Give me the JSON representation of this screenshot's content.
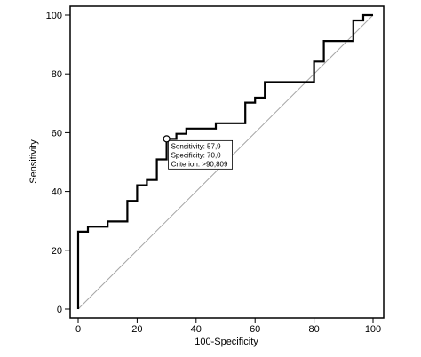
{
  "chart_data": {
    "type": "line",
    "title": "",
    "xlabel": "100-Specificity",
    "ylabel": "Sensitivity",
    "xlim": [
      0,
      100
    ],
    "ylim": [
      0,
      100
    ],
    "x_ticks": [
      "0",
      "20",
      "40",
      "60",
      "80",
      "100"
    ],
    "y_ticks": [
      "0",
      "20",
      "40",
      "60",
      "80",
      "100"
    ],
    "grid": false,
    "legend": "none",
    "series": [
      {
        "type": "step",
        "color": "#000000",
        "points": [
          [
            0,
            0
          ],
          [
            0,
            26.3
          ],
          [
            3.3,
            26.3
          ],
          [
            3.3,
            28
          ],
          [
            10,
            28
          ],
          [
            10,
            29.8
          ],
          [
            16.7,
            29.8
          ],
          [
            16.7,
            36.8
          ],
          [
            20,
            36.8
          ],
          [
            20,
            42.1
          ],
          [
            23.3,
            42.1
          ],
          [
            23.3,
            43.9
          ],
          [
            26.7,
            43.9
          ],
          [
            26.7,
            50.9
          ],
          [
            30,
            50.9
          ],
          [
            30,
            57.9
          ],
          [
            33.3,
            57.9
          ],
          [
            33.3,
            59.6
          ],
          [
            36.7,
            59.6
          ],
          [
            36.7,
            61.4
          ],
          [
            46.7,
            61.4
          ],
          [
            46.7,
            63.2
          ],
          [
            56.7,
            63.2
          ],
          [
            56.7,
            70.2
          ],
          [
            60,
            70.2
          ],
          [
            60,
            71.9
          ],
          [
            63.3,
            71.9
          ],
          [
            63.3,
            77.2
          ],
          [
            80,
            77.2
          ],
          [
            80,
            84.2
          ],
          [
            83.3,
            84.2
          ],
          [
            83.3,
            91.2
          ],
          [
            93.3,
            91.2
          ],
          [
            93.3,
            98.2
          ],
          [
            96.7,
            98.2
          ],
          [
            96.7,
            100
          ],
          [
            100,
            100
          ]
        ]
      },
      {
        "type": "reference-diagonal",
        "color": "#a6a6a6",
        "points": [
          [
            0,
            0
          ],
          [
            100,
            100
          ]
        ]
      }
    ],
    "annotation": {
      "point": [
        30,
        57.9
      ],
      "lines": [
        "Sensitivity: 57,9",
        "Specificity: 70,0",
        "Criterion: >90,809"
      ]
    }
  }
}
